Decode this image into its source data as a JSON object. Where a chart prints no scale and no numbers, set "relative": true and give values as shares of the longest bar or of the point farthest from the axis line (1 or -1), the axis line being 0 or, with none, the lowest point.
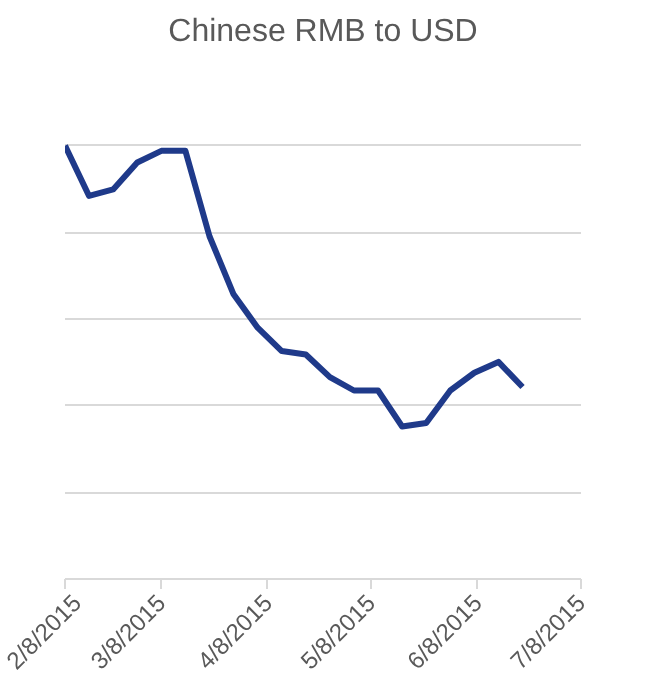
{
  "chart_data": {
    "type": "line",
    "title": "Chinese RMB to USD",
    "relative": true,
    "grid": "y",
    "marker": "none",
    "line_style": "solid",
    "x": [
      "2015-02-08",
      "2015-02-15",
      "2015-02-22",
      "2015-03-01",
      "2015-03-08",
      "2015-03-15",
      "2015-03-22",
      "2015-03-29",
      "2015-04-05",
      "2015-04-12",
      "2015-04-19",
      "2015-04-26",
      "2015-05-03",
      "2015-05-10",
      "2015-05-17",
      "2015-05-24",
      "2015-05-31",
      "2015-06-07",
      "2015-06-14",
      "2015-06-21"
    ],
    "xticks": [
      {
        "value": "2015-02-08",
        "label": "2/8/2015"
      },
      {
        "value": "2015-03-08",
        "label": "3/8/2015"
      },
      {
        "value": "2015-04-08",
        "label": "4/8/2015"
      },
      {
        "value": "2015-05-08",
        "label": "5/8/2015"
      },
      {
        "value": "2015-06-08",
        "label": "6/8/2015"
      },
      {
        "value": "2015-07-08",
        "label": "7/8/2015"
      }
    ],
    "xlim": [
      "2015-02-08",
      "2015-07-08"
    ],
    "series": [
      {
        "color": "#1f3a8a",
        "values": [
          1.0,
          0.884,
          0.899,
          0.961,
          0.988,
          0.988,
          0.791,
          0.657,
          0.58,
          0.526,
          0.518,
          0.466,
          0.435,
          0.435,
          0.352,
          0.36,
          0.435,
          0.476,
          0.501,
          0.443
        ]
      }
    ]
  }
}
